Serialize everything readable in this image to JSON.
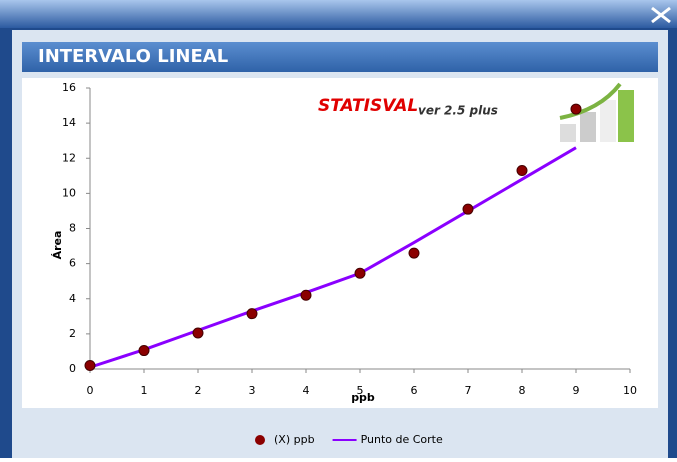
{
  "window": {
    "title": "INTERVALO LINEAL"
  },
  "logo": {
    "name": "STATISVAL",
    "version": "ver 2.5 plus"
  },
  "chart_data": {
    "type": "scatter",
    "x_label": "ppb",
    "y_label": "Área",
    "x": [
      0,
      1,
      2,
      3,
      4,
      5,
      6,
      7,
      8,
      9
    ],
    "series": [
      {
        "name": "(X) ppb",
        "type": "scatter",
        "color": "#8b0000",
        "values": [
          0.2,
          1.05,
          2.05,
          3.15,
          4.2,
          5.45,
          6.6,
          9.1,
          11.3,
          14.8
        ]
      },
      {
        "name": "Punto de Corte",
        "type": "line",
        "color": "#8a00ff",
        "values": [
          0.1,
          1.1,
          2.2,
          3.3,
          4.35,
          5.45,
          7.2,
          9.0,
          10.8,
          12.6
        ]
      }
    ],
    "xlim": [
      0,
      10
    ],
    "xticks": [
      0,
      1,
      2,
      3,
      4,
      5,
      6,
      7,
      8,
      9,
      10
    ],
    "ylim": [
      0,
      16
    ],
    "yticks": [
      0,
      2,
      4,
      6,
      8,
      10,
      12,
      14,
      16
    ],
    "legend": "bottom"
  }
}
